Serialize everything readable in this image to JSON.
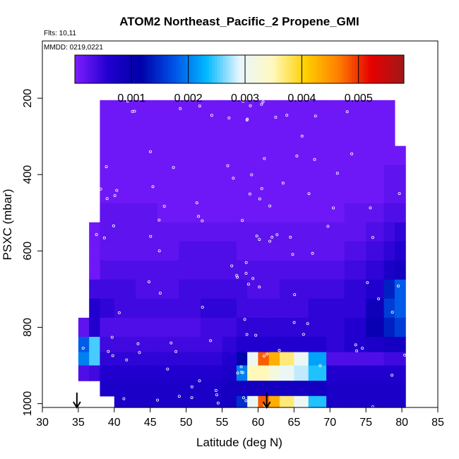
{
  "chart_data": {
    "type": "heatmap",
    "title": "ATOM2 Northeast_Pacific_2 Propene_GMI",
    "flights_label": "Flts: 10,11",
    "dates_label": "MMDD: 0219,0221",
    "xlabel": "Latitude (deg N)",
    "ylabel": "PSXC (mbar)",
    "xlim": [
      30,
      85
    ],
    "ylim": [
      1010,
      50
    ],
    "x_ticks": [
      "30",
      "35",
      "40",
      "45",
      "50",
      "55",
      "60",
      "65",
      "70",
      "75",
      "80",
      "85"
    ],
    "y_ticks": [
      "200",
      "400",
      "600",
      "800",
      "1000"
    ],
    "colorbar": {
      "range": [
        0,
        0.0058
      ],
      "tick_values": [
        0.001,
        0.002,
        0.003,
        0.004,
        0.005
      ],
      "tick_labels": [
        "0.001",
        "0.002",
        "0.003",
        "0.004",
        "0.005"
      ],
      "colors": [
        "#7f1dff",
        "#2200d0",
        "#0000a8",
        "#0050e6",
        "#00b8ff",
        "#e8f6ff",
        "#fff9c0",
        "#ffd000",
        "#ff8000",
        "#e60000",
        "#a01818"
      ]
    },
    "pressure_levels": [
      220,
      250,
      300,
      350,
      400,
      450,
      500,
      550,
      600,
      650,
      700,
      750,
      800,
      850,
      880,
      920,
      960,
      1000
    ],
    "columns": [
      {
        "lat": [
          35.0,
          36.5
        ],
        "values": [
          null,
          null,
          null,
          null,
          null,
          null,
          null,
          null,
          null,
          null,
          null,
          null,
          0.0002,
          0.0018,
          0.002,
          0.0003,
          null,
          null
        ]
      },
      {
        "lat": [
          36.5,
          38.0
        ],
        "values": [
          null,
          null,
          null,
          null,
          null,
          null,
          null,
          0.0001,
          0.0001,
          0.0001,
          0.0004,
          0.0006,
          0.0006,
          0.0025,
          0.0025,
          0.0004,
          null,
          null
        ]
      },
      {
        "lat": [
          38.0,
          40.0
        ],
        "values": [
          0.0001,
          0.0001,
          0.0001,
          0.0001,
          0.0001,
          0.0001,
          0.0002,
          0.0002,
          0.0002,
          0.0003,
          0.0004,
          0.0005,
          0.0003,
          0.0004,
          0.0005,
          0.0006,
          0.0007,
          null
        ]
      },
      {
        "lat": [
          40.0,
          43.0
        ],
        "values": [
          0.0001,
          0.0001,
          0.0001,
          0.0001,
          0.0001,
          0.0001,
          0.0002,
          0.0002,
          0.0002,
          0.0003,
          0.0004,
          0.0004,
          0.0003,
          0.0004,
          0.0005,
          0.0006,
          0.0007,
          0.0007
        ]
      },
      {
        "lat": [
          43.0,
          46.0
        ],
        "values": [
          0.0001,
          0.0001,
          0.0001,
          0.0001,
          0.0001,
          0.0001,
          0.0002,
          0.0002,
          0.0002,
          0.0003,
          0.0003,
          0.0004,
          0.0003,
          0.0004,
          0.0005,
          0.0006,
          0.0007,
          0.0007
        ]
      },
      {
        "lat": [
          46.0,
          49.0
        ],
        "values": [
          0.0001,
          0.0001,
          0.0001,
          0.0001,
          0.0001,
          0.0001,
          0.0001,
          0.0002,
          0.0002,
          0.0003,
          0.0003,
          0.0004,
          0.0003,
          0.0004,
          0.0005,
          0.0006,
          0.0007,
          0.0007
        ]
      },
      {
        "lat": [
          49.0,
          52.0
        ],
        "values": [
          0.0001,
          0.0001,
          0.0001,
          0.0001,
          0.0001,
          0.0001,
          0.0001,
          0.0002,
          0.0003,
          0.0003,
          0.0004,
          0.0004,
          0.0003,
          0.0004,
          0.0005,
          0.0006,
          0.0007,
          0.0007
        ]
      },
      {
        "lat": [
          52.0,
          55.0
        ],
        "values": [
          0.0001,
          0.0001,
          0.0001,
          0.0001,
          0.0001,
          0.0001,
          0.0001,
          0.0002,
          0.0003,
          0.0003,
          0.0004,
          0.0005,
          0.0004,
          0.0004,
          0.0005,
          0.0006,
          0.0007,
          0.0007
        ]
      },
      {
        "lat": [
          55.0,
          57.0
        ],
        "values": [
          0.0001,
          0.0001,
          0.0001,
          0.0001,
          0.0001,
          0.0001,
          0.0001,
          0.0002,
          0.0003,
          0.0003,
          0.0004,
          0.0005,
          0.0004,
          0.0005,
          0.0006,
          0.0007,
          0.0008,
          0.0008
        ]
      },
      {
        "lat": [
          57.0,
          58.5
        ],
        "values": [
          0.0001,
          0.0001,
          0.0001,
          0.0001,
          0.0001,
          0.0001,
          0.0001,
          0.0002,
          0.0002,
          0.0003,
          0.0004,
          0.0004,
          0.0005,
          0.0006,
          0.0012,
          0.002,
          0.0008,
          0.0015
        ]
      },
      {
        "lat": [
          58.5,
          60.0
        ],
        "values": [
          0.0001,
          0.0001,
          0.0001,
          0.0001,
          0.0001,
          0.0001,
          0.0001,
          0.0002,
          0.0002,
          0.0003,
          0.0003,
          0.0004,
          0.0005,
          0.0006,
          0.003,
          0.0035,
          0.0008,
          0.003
        ]
      },
      {
        "lat": [
          60.0,
          61.5
        ],
        "values": [
          0.0001,
          0.0001,
          0.0001,
          0.0001,
          0.0001,
          0.0001,
          0.0001,
          0.0002,
          0.0002,
          0.0003,
          0.0003,
          0.0004,
          0.0005,
          0.0006,
          0.0048,
          0.0035,
          0.0008,
          0.0048
        ]
      },
      {
        "lat": [
          61.5,
          63.0
        ],
        "values": [
          0.0001,
          0.0001,
          0.0001,
          0.0001,
          0.0001,
          0.0001,
          0.0001,
          0.0002,
          0.0002,
          0.0003,
          0.0003,
          0.0004,
          0.0005,
          0.0006,
          0.0043,
          0.0032,
          0.0008,
          0.0043
        ]
      },
      {
        "lat": [
          63.0,
          65.0
        ],
        "values": [
          0.0001,
          0.0001,
          0.0001,
          0.0001,
          0.0001,
          0.0001,
          0.0001,
          0.0002,
          0.0002,
          0.0003,
          0.0004,
          0.0004,
          0.0005,
          0.0006,
          0.0037,
          0.003,
          0.0008,
          0.0037
        ]
      },
      {
        "lat": [
          65.0,
          67.0
        ],
        "values": [
          0.0001,
          0.0001,
          0.0001,
          0.0001,
          0.0001,
          0.0001,
          0.0001,
          0.0002,
          0.0002,
          0.0003,
          0.0004,
          0.0004,
          0.0005,
          0.0006,
          0.003,
          0.0028,
          0.0008,
          0.003
        ]
      },
      {
        "lat": [
          67.0,
          69.5
        ],
        "values": [
          0.0001,
          0.0001,
          0.0001,
          0.0001,
          0.0001,
          0.0001,
          0.0001,
          0.0002,
          0.0002,
          0.0003,
          0.0004,
          0.0005,
          0.0005,
          0.0006,
          0.0022,
          0.0024,
          0.0008,
          0.0024
        ]
      },
      {
        "lat": [
          69.5,
          72.0
        ],
        "values": [
          0.0001,
          0.0001,
          0.0001,
          0.0001,
          0.0001,
          0.0001,
          0.0001,
          0.0002,
          0.0002,
          0.0003,
          0.0004,
          0.0005,
          0.0005,
          0.0005,
          0.0003,
          0.0006,
          0.0007,
          0.0007
        ]
      },
      {
        "lat": [
          72.0,
          75.0
        ],
        "values": [
          0.0001,
          0.0001,
          0.0001,
          0.0001,
          0.0001,
          0.0001,
          0.0002,
          0.0002,
          0.0003,
          0.0004,
          0.0005,
          0.0005,
          0.0006,
          0.0006,
          0.0003,
          0.0006,
          0.0007,
          0.0007
        ]
      },
      {
        "lat": [
          75.0,
          77.5
        ],
        "values": [
          0.0001,
          0.0001,
          0.0001,
          0.0001,
          0.0001,
          0.0001,
          0.0002,
          0.0003,
          0.0004,
          0.0005,
          0.0006,
          0.0009,
          0.001,
          0.0007,
          0.0003,
          0.0006,
          0.0007,
          0.0007
        ]
      },
      {
        "lat": [
          77.5,
          79.0
        ],
        "values": [
          0.0001,
          0.0001,
          0.0001,
          0.0001,
          0.0002,
          0.0002,
          0.0003,
          0.0004,
          0.0005,
          0.0007,
          0.0014,
          0.0016,
          0.0014,
          0.0008,
          0.0004,
          0.0006,
          0.0007,
          0.0007
        ]
      },
      {
        "lat": [
          79.0,
          80.5
        ],
        "values": [
          null,
          null,
          null,
          0.0001,
          0.0002,
          0.0002,
          0.0003,
          0.0005,
          0.0006,
          0.0008,
          0.0018,
          0.0018,
          0.0016,
          0.0008,
          0.0004,
          0.0006,
          0.0007,
          0.0007
        ]
      }
    ],
    "markers": [
      {
        "lat": 34.8,
        "label": "start-arrow"
      },
      {
        "lat": 61.2,
        "label": "end-arrow"
      }
    ]
  }
}
